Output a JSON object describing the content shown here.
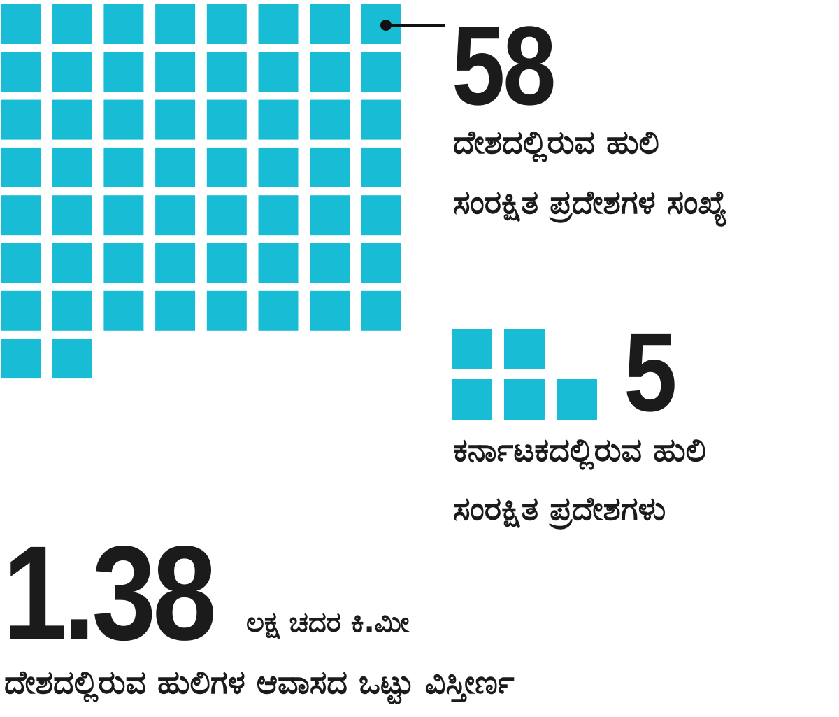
{
  "colors": {
    "square_fill": "#19bcd5",
    "text": "#1b1b1b",
    "leader_line": "#111111"
  },
  "chart_data": [
    {
      "type": "waffle",
      "value": 58,
      "label_lines": [
        "ದೇಶದಲ್ಲಿರುವ ಹುಲಿ",
        "ಸಂರಕ್ಷಿತ ಪ್ರದೇಶಗಳ ಸಂಖ್ಯೆ"
      ]
    },
    {
      "type": "waffle",
      "value": 5,
      "label_lines": [
        "ಕರ್ನಾಟಕದಲ್ಲಿರುವ ಹುಲಿ",
        "ಸಂರಕ್ಷಿತ ಪ್ರದೇಶಗಳು"
      ]
    }
  ],
  "stats": {
    "reserves_india": {
      "value": "58"
    },
    "reserves_karnataka": {
      "value": "5"
    },
    "habitat_area": {
      "value": "1.38",
      "unit": "ಲಕ್ಷ ಚದರ ಕಿ.ಮೀ",
      "description": "ದೇಶದಲ್ಲಿರುವ ಹುಲಿಗಳ ಆವಾಸದ ಒಟ್ಟು ವಿಸ್ತೀರ್ಣ"
    }
  }
}
